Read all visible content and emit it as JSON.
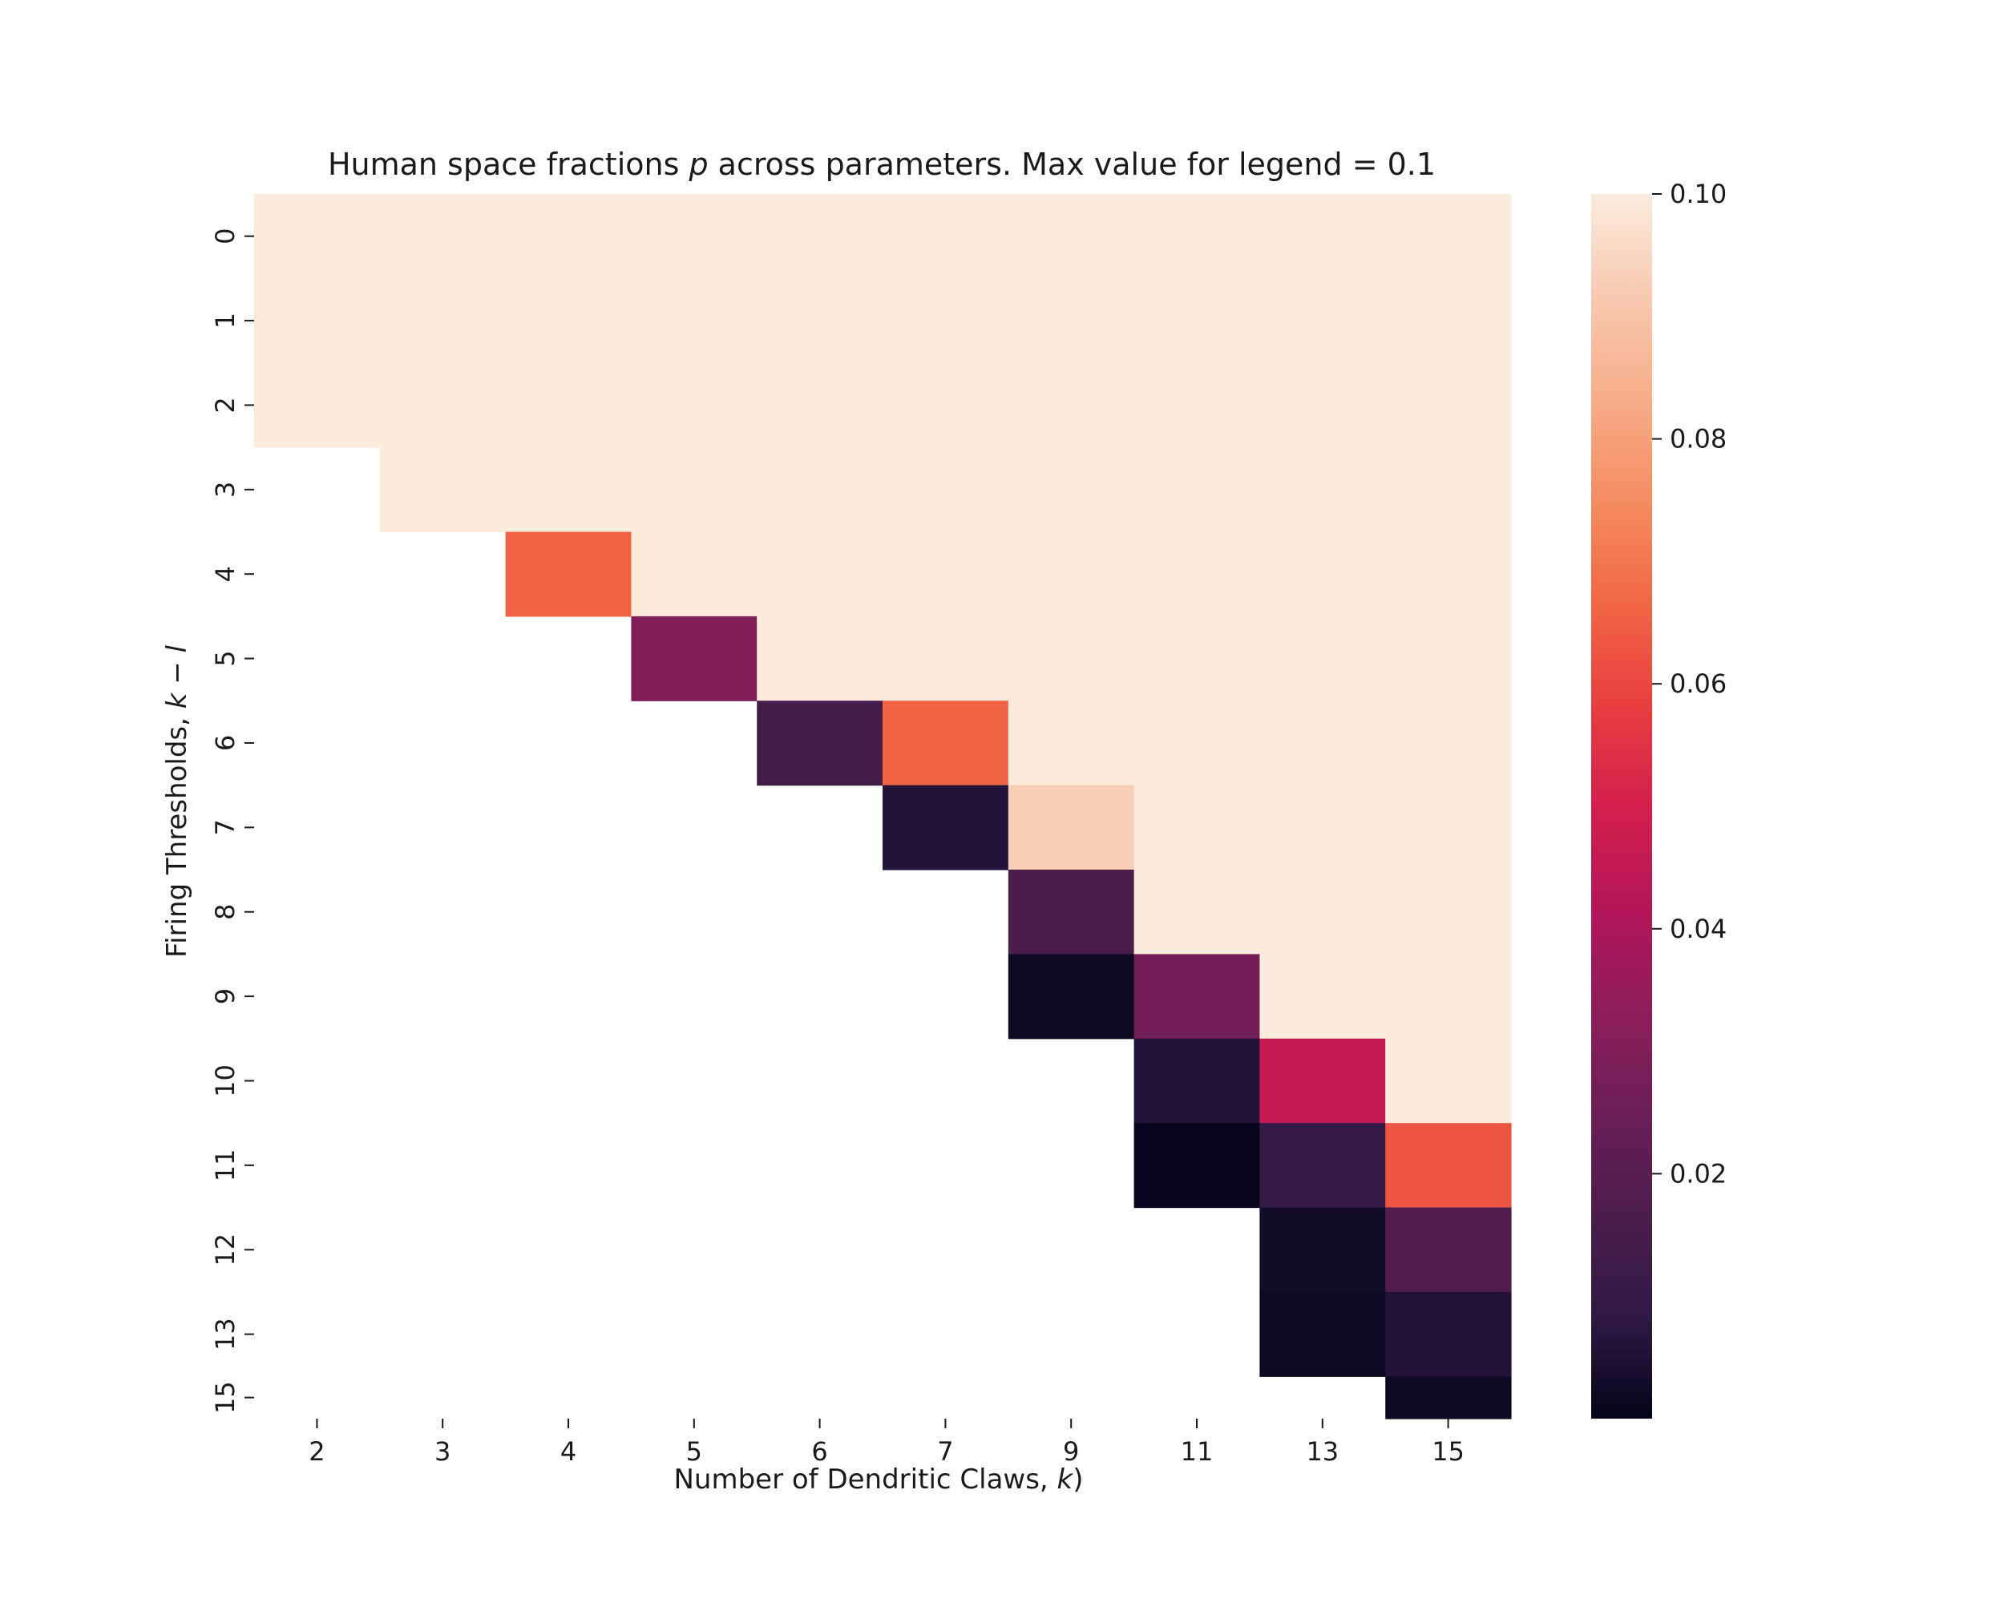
{
  "chart_data": {
    "type": "heatmap",
    "title_prefix": "Human space fractions ",
    "title_var": "p",
    "title_suffix": " across parameters. Max value for legend = 0.1",
    "xlabel_prefix": "Number of Dendritic Claws, ",
    "xlabel_var": "k",
    "xlabel_suffix": ")",
    "ylabel_prefix": "Firing Thresholds, ",
    "ylabel_var": "k − l",
    "x_categories": [
      "2",
      "3",
      "4",
      "5",
      "6",
      "7",
      "9",
      "11",
      "13",
      "15"
    ],
    "y_categories": [
      "0",
      "1",
      "2",
      "3",
      "4",
      "5",
      "6",
      "7",
      "8",
      "9",
      "10",
      "11",
      "12",
      "13",
      "15"
    ],
    "x_spans": [
      [
        0,
        1
      ],
      [
        1,
        2
      ],
      [
        2,
        3
      ],
      [
        3,
        4
      ],
      [
        4,
        5
      ],
      [
        5,
        6
      ],
      [
        6,
        7
      ],
      [
        7,
        8
      ],
      [
        8,
        9
      ],
      [
        9,
        10
      ]
    ],
    "y_spans": [
      [
        0,
        1
      ],
      [
        1,
        2
      ],
      [
        2,
        3
      ],
      [
        3,
        4
      ],
      [
        4,
        5
      ],
      [
        5,
        6
      ],
      [
        6,
        7
      ],
      [
        7,
        8
      ],
      [
        8,
        9
      ],
      [
        9,
        10
      ],
      [
        10,
        11
      ],
      [
        11,
        12
      ],
      [
        12,
        13
      ],
      [
        13,
        14
      ],
      [
        14,
        14.5
      ]
    ],
    "values": [
      [
        0.1,
        0.1,
        0.1,
        0.1,
        0.1,
        0.1,
        0.1,
        0.1,
        0.1,
        0.1
      ],
      [
        0.1,
        0.1,
        0.1,
        0.1,
        0.1,
        0.1,
        0.1,
        0.1,
        0.1,
        0.1
      ],
      [
        0.1,
        0.1,
        0.1,
        0.1,
        0.1,
        0.1,
        0.1,
        0.1,
        0.1,
        0.1
      ],
      [
        null,
        0.1,
        0.1,
        0.1,
        0.1,
        0.1,
        0.1,
        0.1,
        0.1,
        0.1
      ],
      [
        null,
        null,
        0.066,
        0.1,
        0.1,
        0.1,
        0.1,
        0.1,
        0.1,
        0.1
      ],
      [
        null,
        null,
        null,
        0.03,
        0.1,
        0.1,
        0.1,
        0.1,
        0.1,
        0.1
      ],
      [
        null,
        null,
        null,
        null,
        0.014,
        0.066,
        0.1,
        0.1,
        0.1,
        0.1
      ],
      [
        null,
        null,
        null,
        null,
        null,
        0.006,
        0.093,
        0.1,
        0.1,
        0.1
      ],
      [
        null,
        null,
        null,
        null,
        null,
        null,
        0.016,
        0.1,
        0.1,
        0.1
      ],
      [
        null,
        null,
        null,
        null,
        null,
        null,
        0.002,
        0.027,
        0.1,
        0.1
      ],
      [
        null,
        null,
        null,
        null,
        null,
        null,
        null,
        0.006,
        0.046,
        0.1
      ],
      [
        null,
        null,
        null,
        null,
        null,
        null,
        null,
        0.001,
        0.01,
        0.063
      ],
      [
        null,
        null,
        null,
        null,
        null,
        null,
        null,
        null,
        0.003,
        0.018
      ],
      [
        null,
        null,
        null,
        null,
        null,
        null,
        null,
        null,
        0.002,
        0.006
      ],
      [
        null,
        null,
        null,
        null,
        null,
        null,
        null,
        null,
        null,
        0.002
      ]
    ],
    "colorbar": {
      "vmin": 0.0,
      "vmax": 0.1,
      "ticks": [
        0.02,
        0.04,
        0.06,
        0.08,
        0.1
      ],
      "tick_labels": [
        "0.02",
        "0.04",
        "0.06",
        "0.08",
        "0.10"
      ],
      "colormap": "rocket",
      "stops": [
        "#03051a",
        "#2f1944",
        "#4c1d4b",
        "#6b1f56",
        "#8e1d5b",
        "#b41658",
        "#d41f4d",
        "#e83f3f",
        "#f16746",
        "#f58c62",
        "#f6ae89",
        "#f8c9b0",
        "#faebdd"
      ]
    },
    "missing_color": "#ffffff"
  }
}
